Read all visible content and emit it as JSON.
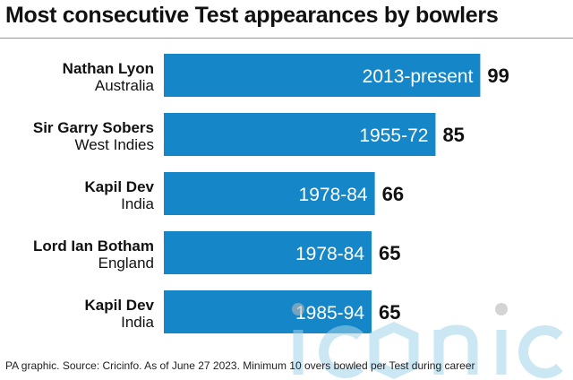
{
  "title": "Most consecutive Test appearances by bowlers",
  "footer": "PA graphic. Source: Cricinfo. As of June 27 2023. Minimum 10 overs bowled per Test during career",
  "watermark": "iconic",
  "colors": {
    "bar": "#1586c8",
    "bar_text": "#ffffff",
    "value_text": "#111111",
    "watermark": "#9fd4ea"
  },
  "chart_data": {
    "type": "bar",
    "orientation": "horizontal",
    "title": "Most consecutive Test appearances by bowlers",
    "xlabel": "",
    "ylabel": "",
    "xlim": [
      0,
      100
    ],
    "grid": false,
    "legend": "none",
    "categories": [
      {
        "name": "Nathan Lyon",
        "country": "Australia",
        "period": "2013-present"
      },
      {
        "name": "Sir Garry Sobers",
        "country": "West Indies",
        "period": "1955-72"
      },
      {
        "name": "Kapil Dev",
        "country": "India",
        "period": "1978-84"
      },
      {
        "name": "Lord Ian Botham",
        "country": "England",
        "period": "1978-84"
      },
      {
        "name": "Kapil Dev",
        "country": "India",
        "period": "1985-94"
      }
    ],
    "values": [
      99,
      85,
      66,
      65,
      65
    ]
  }
}
